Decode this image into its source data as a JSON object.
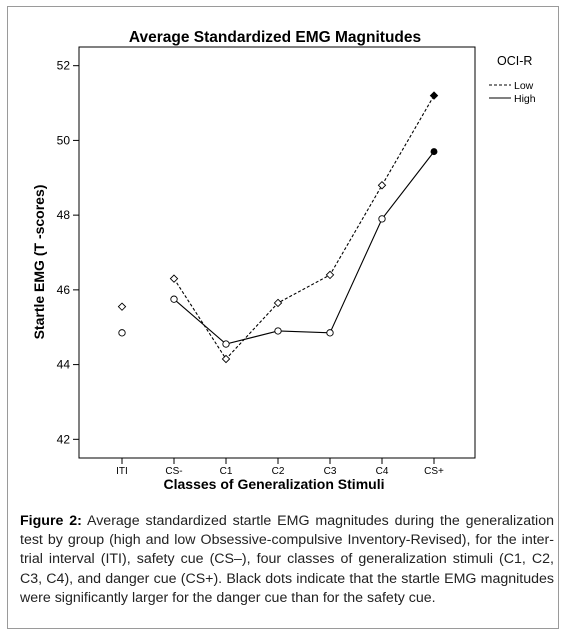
{
  "chart_data": {
    "type": "line",
    "title": "Average Standardized EMG Magnitudes",
    "xlabel": "Classes of Generalization Stimuli",
    "ylabel": "Startle EMG (T -scores)",
    "categories": [
      "ITI",
      "CS-",
      "C1",
      "C2",
      "C3",
      "C4",
      "CS+"
    ],
    "ylim": [
      41.5,
      52.5
    ],
    "yticks": [
      "42",
      "44",
      "46",
      "48",
      "50",
      "52"
    ],
    "legend": {
      "title": "OCI-R",
      "position": "top-right, outside plot",
      "entries": [
        "Low",
        "High"
      ]
    },
    "series": [
      {
        "name": "Low",
        "line_style": "dashed",
        "marker": "diamond",
        "values": [
          45.55,
          46.3,
          44.15,
          45.65,
          46.4,
          48.8,
          51.2
        ],
        "connected_from_index": 1,
        "filled_marker_index": 6
      },
      {
        "name": "High",
        "line_style": "solid",
        "marker": "circle",
        "values": [
          44.85,
          45.75,
          44.55,
          44.9,
          44.85,
          47.9,
          49.7
        ],
        "connected_from_index": 1,
        "filled_marker_index": 6
      }
    ],
    "grid": false
  },
  "caption": {
    "label": "Figure 2:",
    "text": " Average standardized startle EMG magnitudes during the generalization test by group (high and low Obsessive-compulsive Inventory-Revised), for the inter-trial interval (ITI), safety cue (CS–), four classes of generalization stimuli (C1, C2, C3, C4), and danger cue (CS+). Black dots indicate that the startle EMG magnitudes were significantly larger for the danger cue than for the safety cue."
  }
}
